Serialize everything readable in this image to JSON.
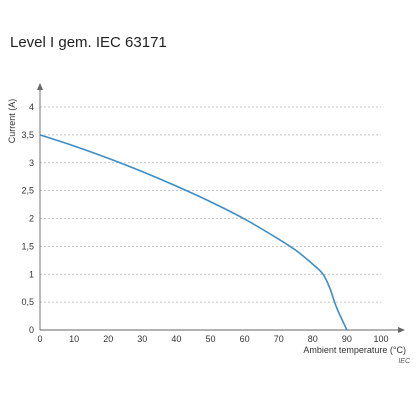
{
  "chart_data": {
    "type": "line",
    "title": "Level I gem. IEC 63171",
    "xlabel": "Ambient temperature (°C)",
    "ylabel": "Current (A)",
    "xlim": [
      0,
      100
    ],
    "ylim": [
      0,
      4
    ],
    "xticks": [
      0,
      10,
      20,
      30,
      40,
      50,
      60,
      70,
      80,
      90,
      100
    ],
    "yticks": [
      "0",
      "0,5",
      "1",
      "1,5",
      "2",
      "2,5",
      "3",
      "3,5",
      "4"
    ],
    "grid": "y-dashed",
    "note": "IEC",
    "line_color": "#3c8dc8",
    "series": [
      {
        "x": [
          0,
          10,
          20,
          30,
          40,
          50,
          60,
          70,
          75,
          80,
          83,
          85,
          87,
          90
        ],
        "y": [
          3.5,
          3.3,
          3.08,
          2.84,
          2.58,
          2.3,
          1.99,
          1.63,
          1.43,
          1.18,
          1.0,
          0.75,
          0.4,
          0.0
        ]
      }
    ]
  }
}
